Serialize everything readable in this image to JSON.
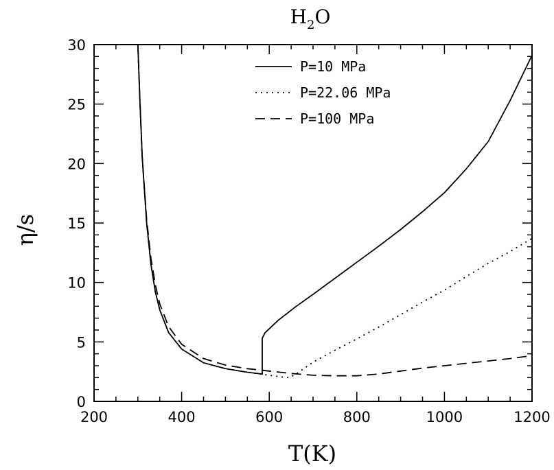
{
  "chart_data": {
    "type": "line",
    "title": "H",
    "title_subscript": "2",
    "title_suffix": "O",
    "xlabel": "T(K)",
    "ylabel": "η/s",
    "xlim": [
      200,
      1200
    ],
    "ylim": [
      0,
      30
    ],
    "x_ticks": [
      200,
      400,
      600,
      800,
      1000,
      1200
    ],
    "y_ticks": [
      0,
      5,
      10,
      15,
      20,
      25,
      30
    ],
    "x_minor_step": 50,
    "y_minor_step": 1,
    "grid": false,
    "legend_position": "top-right",
    "series": [
      {
        "name": "P=10 MPa",
        "line_style": "solid",
        "points": [
          [
            300,
            30
          ],
          [
            305,
            25
          ],
          [
            310,
            20.5
          ],
          [
            320,
            15
          ],
          [
            330,
            11.5
          ],
          [
            340,
            9.2
          ],
          [
            350,
            7.7
          ],
          [
            370,
            5.8
          ],
          [
            400,
            4.4
          ],
          [
            450,
            3.25
          ],
          [
            500,
            2.75
          ],
          [
            550,
            2.45
          ],
          [
            584,
            2.3
          ],
          [
            584,
            5.3
          ],
          [
            590,
            5.75
          ],
          [
            620,
            6.8
          ],
          [
            660,
            7.95
          ],
          [
            700,
            9.0
          ],
          [
            750,
            10.35
          ],
          [
            800,
            11.7
          ],
          [
            850,
            13.05
          ],
          [
            900,
            14.45
          ],
          [
            950,
            15.95
          ],
          [
            1000,
            17.55
          ],
          [
            1050,
            19.55
          ],
          [
            1100,
            21.85
          ],
          [
            1150,
            25.3
          ],
          [
            1200,
            29.1
          ]
        ]
      },
      {
        "name": "P=22.06 MPa",
        "line_style": "dotted",
        "points": [
          [
            300,
            30
          ],
          [
            305,
            25
          ],
          [
            310,
            20.5
          ],
          [
            320,
            15
          ],
          [
            330,
            11.5
          ],
          [
            340,
            9.2
          ],
          [
            350,
            7.7
          ],
          [
            370,
            5.8
          ],
          [
            400,
            4.4
          ],
          [
            450,
            3.25
          ],
          [
            500,
            2.75
          ],
          [
            550,
            2.45
          ],
          [
            600,
            2.2
          ],
          [
            630,
            2.05
          ],
          [
            647,
            2.0
          ],
          [
            665,
            2.4
          ],
          [
            700,
            3.3
          ],
          [
            750,
            4.3
          ],
          [
            800,
            5.25
          ],
          [
            850,
            6.25
          ],
          [
            900,
            7.3
          ],
          [
            950,
            8.35
          ],
          [
            1000,
            9.35
          ],
          [
            1050,
            10.5
          ],
          [
            1100,
            11.6
          ],
          [
            1150,
            12.6
          ],
          [
            1200,
            13.7
          ]
        ]
      },
      {
        "name": "P=100 MPa",
        "line_style": "dashed",
        "points": [
          [
            300,
            30
          ],
          [
            305,
            25
          ],
          [
            310,
            20.5
          ],
          [
            320,
            15.3
          ],
          [
            330,
            12
          ],
          [
            340,
            9.8
          ],
          [
            350,
            8.2
          ],
          [
            370,
            6.3
          ],
          [
            400,
            4.8
          ],
          [
            450,
            3.6
          ],
          [
            500,
            3.05
          ],
          [
            550,
            2.75
          ],
          [
            600,
            2.55
          ],
          [
            650,
            2.35
          ],
          [
            700,
            2.2
          ],
          [
            750,
            2.15
          ],
          [
            800,
            2.15
          ],
          [
            850,
            2.3
          ],
          [
            900,
            2.55
          ],
          [
            950,
            2.8
          ],
          [
            1000,
            3.0
          ],
          [
            1050,
            3.2
          ],
          [
            1100,
            3.4
          ],
          [
            1150,
            3.6
          ],
          [
            1200,
            3.85
          ]
        ]
      }
    ]
  }
}
